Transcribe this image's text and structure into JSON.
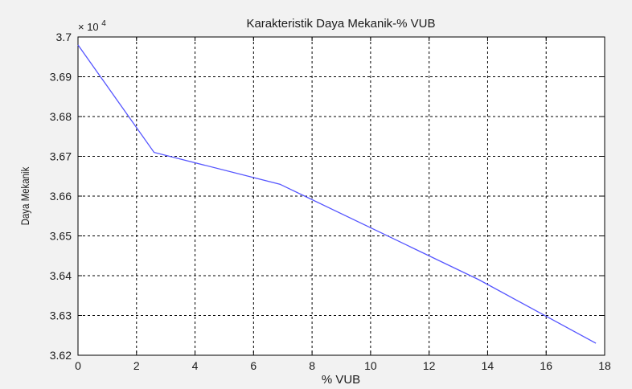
{
  "chart_data": {
    "type": "line",
    "title": "Karakteristik Daya Mekanik-% VUB",
    "xlabel": "% VUB",
    "ylabel": "Daya Mekanik",
    "y_multiplier_label": "× 10",
    "y_multiplier_exponent": "4",
    "xlim": [
      0,
      18
    ],
    "ylim": [
      3.62,
      3.7
    ],
    "xticks": [
      0,
      2,
      4,
      6,
      8,
      10,
      12,
      14,
      16,
      18
    ],
    "yticks": [
      3.62,
      3.63,
      3.64,
      3.65,
      3.66,
      3.67,
      3.68,
      3.69,
      3.7
    ],
    "xtick_labels": [
      "0",
      "2",
      "4",
      "6",
      "8",
      "10",
      "12",
      "14",
      "16",
      "18"
    ],
    "ytick_labels": [
      "3.62",
      "3.63",
      "3.64",
      "3.65",
      "3.66",
      "3.67",
      "3.68",
      "3.69",
      "3.7"
    ],
    "grid": true,
    "series": [
      {
        "color": "#5555ff",
        "x": [
          0,
          2.6,
          6.9,
          13.7,
          17.7
        ],
        "y": [
          3.698,
          3.671,
          3.663,
          3.639,
          3.623
        ]
      }
    ]
  }
}
